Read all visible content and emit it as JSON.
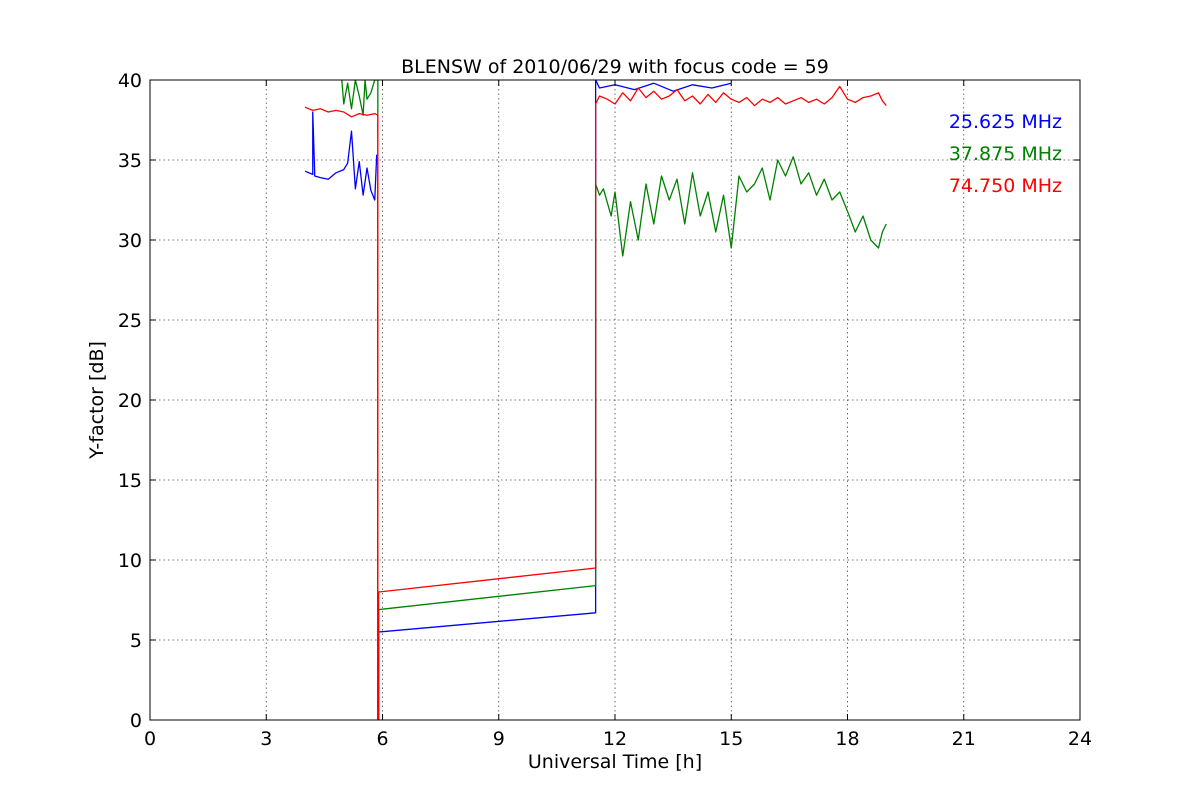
{
  "chart_data": {
    "type": "line",
    "title": "BLENSW of 2010/06/29 with focus code = 59",
    "xlabel": "Universal Time [h]",
    "ylabel": "Y-factor [dB]",
    "xlim": [
      0,
      24
    ],
    "ylim": [
      0,
      40
    ],
    "xticks": [
      "0",
      "3",
      "6",
      "9",
      "12",
      "15",
      "18",
      "21",
      "24"
    ],
    "yticks": [
      "0",
      "5",
      "10",
      "15",
      "20",
      "25",
      "30",
      "35",
      "40"
    ],
    "grid": true,
    "legend_position": "top-right",
    "colors": {
      "s1": "#0000ff",
      "s2": "#008000",
      "s3": "#ff0000"
    },
    "series": [
      {
        "name": "25.625 MHz",
        "x": [
          4.0,
          4.2,
          4.2,
          4.25,
          4.25,
          4.4,
          4.6,
          4.8,
          5.0,
          5.1,
          5.2,
          5.3,
          5.4,
          5.5,
          5.6,
          5.7,
          5.8,
          5.85,
          5.88,
          5.88,
          5.9,
          5.9,
          11.5,
          11.5,
          11.6,
          12.0,
          12.5,
          13.0,
          13.5,
          14.0,
          14.5,
          15.0
        ],
        "y": [
          34.3,
          34.1,
          38.0,
          34.2,
          34.0,
          33.9,
          33.8,
          34.2,
          34.4,
          34.8,
          36.8,
          33.2,
          34.9,
          32.8,
          34.5,
          33.1,
          32.5,
          35.3,
          34.8,
          0,
          0,
          5.5,
          6.7,
          40,
          39.5,
          39.7,
          39.4,
          39.8,
          39.3,
          39.7,
          39.5,
          39.8
        ]
      },
      {
        "name": "37.875 MHz",
        "x": [
          4.95,
          5.0,
          5.1,
          5.2,
          5.3,
          5.4,
          5.5,
          5.55,
          5.6,
          5.7,
          5.8,
          5.88,
          5.88,
          5.9,
          5.9,
          11.5,
          11.5,
          11.6,
          11.7,
          11.9,
          12.0,
          12.2,
          12.4,
          12.6,
          12.8,
          13.0,
          13.2,
          13.4,
          13.6,
          13.8,
          14.0,
          14.2,
          14.4,
          14.6,
          14.8,
          15.0,
          15.2,
          15.4,
          15.6,
          15.8,
          16.0,
          16.2,
          16.4,
          16.6,
          16.8,
          17.0,
          17.2,
          17.4,
          17.6,
          17.8,
          18.0,
          18.2,
          18.4,
          18.6,
          18.8,
          18.9,
          19.0
        ],
        "y": [
          40,
          38.5,
          39.8,
          38.2,
          40,
          39.0,
          37.8,
          40,
          38.8,
          39.2,
          40,
          40,
          0,
          0,
          6.9,
          8.4,
          33.5,
          32.8,
          33.2,
          31.5,
          33.0,
          29.0,
          32.4,
          30.0,
          33.5,
          31.0,
          34.0,
          32.5,
          33.8,
          31.0,
          34.2,
          31.5,
          33.0,
          30.5,
          32.8,
          29.5,
          34.0,
          33.0,
          33.5,
          34.5,
          32.5,
          35.0,
          34.0,
          35.2,
          33.5,
          34.2,
          32.8,
          33.8,
          32.5,
          33.0,
          31.8,
          30.5,
          31.5,
          30.0,
          29.5,
          30.5,
          31.0
        ]
      },
      {
        "name": "74.750 MHz",
        "x": [
          4.0,
          4.2,
          4.4,
          4.6,
          4.8,
          5.0,
          5.2,
          5.4,
          5.6,
          5.8,
          5.88,
          5.88,
          5.9,
          5.9,
          11.5,
          11.5,
          11.6,
          11.8,
          12.0,
          12.2,
          12.4,
          12.6,
          12.8,
          13.0,
          13.2,
          13.4,
          13.6,
          13.8,
          14.0,
          14.2,
          14.4,
          14.6,
          14.8,
          15.0,
          15.2,
          15.4,
          15.6,
          15.8,
          16.0,
          16.2,
          16.4,
          16.6,
          16.8,
          17.0,
          17.2,
          17.4,
          17.6,
          17.8,
          18.0,
          18.2,
          18.4,
          18.6,
          18.8,
          18.9,
          19.0
        ],
        "y": [
          38.3,
          38.1,
          38.2,
          38.0,
          38.1,
          38.0,
          37.7,
          37.9,
          37.8,
          37.9,
          37.8,
          0,
          0,
          8.0,
          9.5,
          38.5,
          39.0,
          38.8,
          38.5,
          39.2,
          38.7,
          39.5,
          38.9,
          39.3,
          38.8,
          39.0,
          39.4,
          38.7,
          39.0,
          38.5,
          39.1,
          38.6,
          39.2,
          38.8,
          38.6,
          38.9,
          38.4,
          38.8,
          38.6,
          38.9,
          38.5,
          38.7,
          38.9,
          38.6,
          38.8,
          38.5,
          38.9,
          39.6,
          38.8,
          38.6,
          38.9,
          39.0,
          39.2,
          38.7,
          38.4
        ]
      }
    ]
  }
}
